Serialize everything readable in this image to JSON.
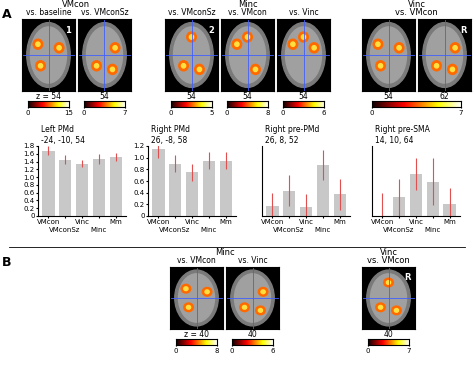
{
  "panels": [
    {
      "label": "A",
      "groups": [
        {
          "header": "VMcon",
          "images": [
            {
              "title": "vs. baseline",
              "z": "z = 54",
              "marker": "1"
            },
            {
              "title": "vs. VMconSz",
              "z": "54"
            }
          ],
          "colorbars": [
            {
              "range": [
                0,
                15
              ],
              "ticks": [
                0,
                15
              ]
            },
            {
              "range": [
                0,
                7
              ],
              "ticks": [
                0,
                7
              ]
            }
          ]
        },
        {
          "header": "Minc",
          "images": [
            {
              "title": "vs. VMconSz",
              "z": "54",
              "marker": "2"
            },
            {
              "title": "vs. VMcon",
              "z": "54"
            },
            {
              "title": "vs. Vinc",
              "z": "54"
            }
          ],
          "colorbars": [
            {
              "range": [
                0,
                5
              ],
              "ticks": [
                0,
                5
              ]
            },
            {
              "range": [
                0,
                8
              ],
              "ticks": [
                0,
                8
              ]
            },
            {
              "range": [
                0,
                6
              ],
              "ticks": [
                0,
                6
              ]
            }
          ]
        },
        {
          "header": "Vinc",
          "subheader": "vs. VMcon",
          "images": [
            {
              "z": "54"
            },
            {
              "z": "62",
              "marker": "R"
            }
          ],
          "colorbars": [
            {
              "range": [
                0,
                7
              ],
              "ticks": [
                0,
                7
              ]
            }
          ]
        }
      ]
    },
    {
      "label": "B",
      "groups": [
        {
          "header": "Minc",
          "images": [
            {
              "title": "vs. VMcon",
              "z": "z = 40"
            },
            {
              "title": "vs. Vinc",
              "z": "40"
            }
          ],
          "colorbars": [
            {
              "range": [
                0,
                8
              ],
              "ticks": [
                0,
                8
              ]
            },
            {
              "range": [
                0,
                6
              ],
              "ticks": [
                0,
                6
              ]
            }
          ]
        },
        {
          "header": "Vinc",
          "subheader": "vs. VMcon",
          "images": [
            {
              "z": "40",
              "marker": "R"
            }
          ],
          "colorbars": [
            {
              "range": [
                0,
                7
              ],
              "ticks": [
                0,
                7
              ]
            }
          ]
        }
      ]
    }
  ],
  "chart_data": [
    {
      "type": "bar",
      "title": "Left PMd",
      "subtitle": "-24, -10, 54",
      "color": "#c8c8c8",
      "categories": [
        "VMcon",
        "VMconSz",
        "Vinc",
        "Minc",
        "Mm"
      ],
      "values": [
        1.68,
        1.45,
        1.35,
        1.47,
        1.52
      ],
      "errors": [
        0.12,
        0.12,
        0.1,
        0.12,
        0.1
      ],
      "ylim": [
        0,
        1.8
      ],
      "yticks": [
        0,
        0.2,
        0.4,
        0.6,
        0.8,
        1.0,
        1.2,
        1.4,
        1.6,
        1.8
      ]
    },
    {
      "type": "bar",
      "title": "Right PMd",
      "subtitle": "26, -8, 58",
      "color": "#c8c8c8",
      "categories": [
        "VMcon",
        "VMconSz",
        "Vinc",
        "Minc",
        "Mm"
      ],
      "values": [
        1.15,
        0.9,
        0.75,
        0.95,
        0.95
      ],
      "errors": [
        0.15,
        0.15,
        0.15,
        0.15,
        0.15
      ],
      "ylim": [
        0,
        1.2
      ],
      "yticks": [
        0,
        0.2,
        0.4,
        0.6,
        0.8,
        1.0,
        1.2
      ]
    },
    {
      "type": "bar",
      "title": "Right pre-PMd",
      "subtitle": "26, 8, 52",
      "color": "#c8c8c8",
      "categories": [
        "VMcon",
        "VMconSz",
        "Vinc",
        "Minc",
        "Mm"
      ],
      "values": [
        0.08,
        0.2,
        0.07,
        0.4,
        0.17
      ],
      "errors": [
        0.1,
        0.12,
        0.1,
        0.12,
        0.12
      ],
      "ylim": [
        0,
        0.55
      ],
      "tick_labels": "x"
    },
    {
      "type": "bar",
      "title": "Right pre-SMA",
      "subtitle": "14, 10, 64",
      "color": "#c8c8c8",
      "categories": [
        "VMcon",
        "VMconSz",
        "Vinc",
        "Minc",
        "Mm"
      ],
      "values": [
        0.0,
        0.12,
        0.27,
        0.22,
        0.08
      ],
      "errors": [
        0.15,
        0.12,
        0.1,
        0.15,
        0.1
      ],
      "ylim": [
        0,
        0.45
      ],
      "tick_labels": "x"
    }
  ]
}
